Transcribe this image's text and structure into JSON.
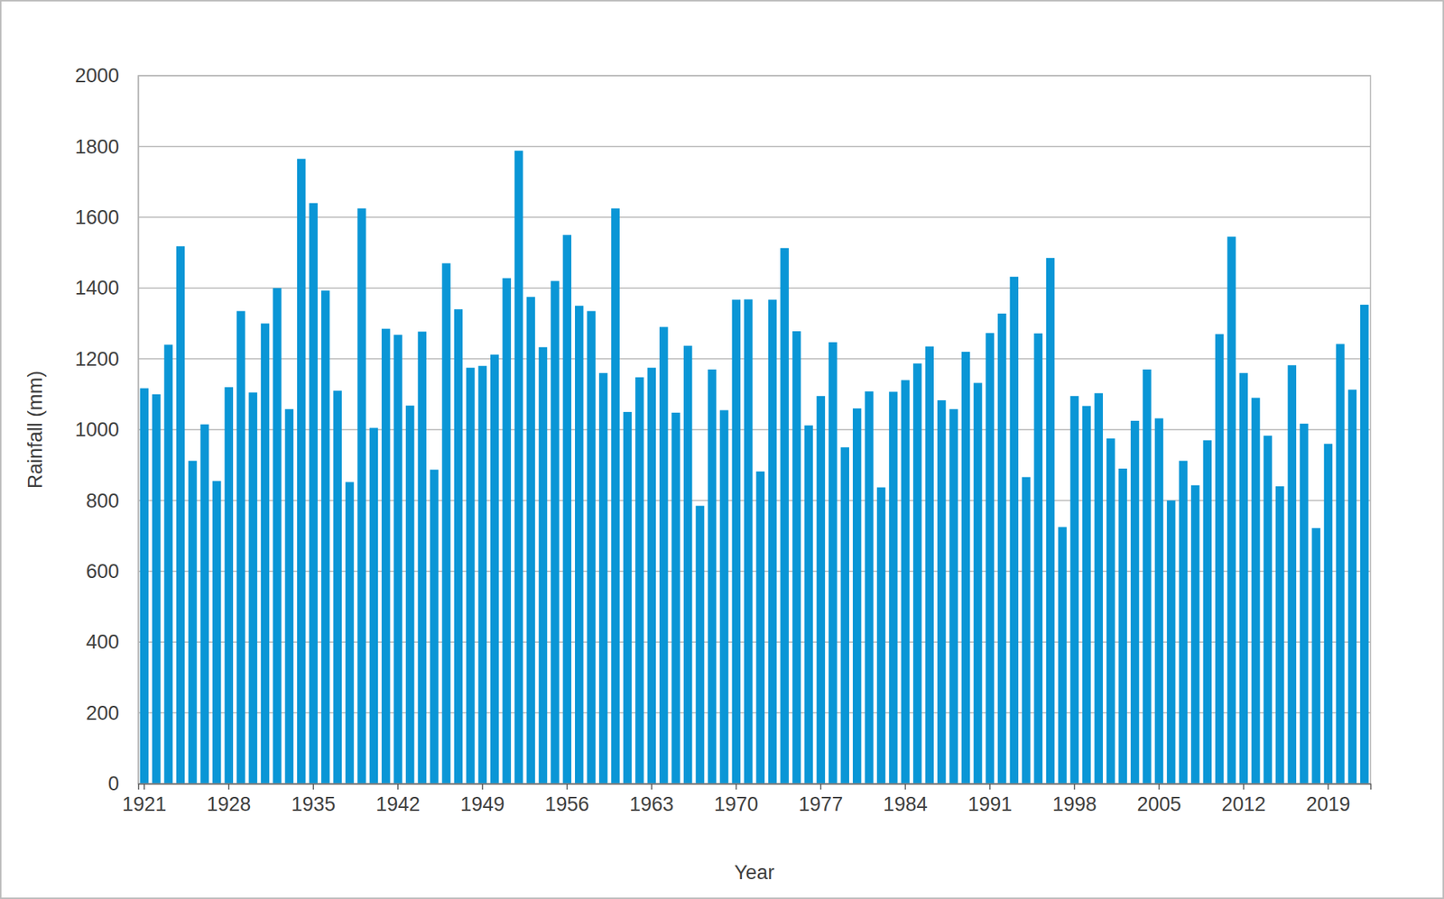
{
  "chart_data": {
    "type": "bar",
    "x_label": "Year",
    "y_label": "Rainfall (mm)",
    "categories": [
      "1921",
      null,
      null,
      null,
      null,
      null,
      null,
      "1928",
      null,
      null,
      null,
      null,
      null,
      null,
      "1935",
      null,
      null,
      null,
      null,
      null,
      null,
      "1942",
      null,
      null,
      null,
      null,
      null,
      null,
      "1949",
      null,
      null,
      null,
      null,
      null,
      null,
      "1956",
      null,
      null,
      null,
      null,
      null,
      null,
      "1963",
      null,
      null,
      null,
      null,
      null,
      null,
      "1970",
      null,
      null,
      null,
      null,
      null,
      null,
      "1977",
      null,
      null,
      null,
      null,
      null,
      null,
      "1984",
      null,
      null,
      null,
      null,
      null,
      null,
      "1991",
      null,
      null,
      null,
      null,
      null,
      null,
      "1998",
      null,
      null,
      null,
      null,
      null,
      null,
      "2005",
      null,
      null,
      null,
      null,
      null,
      null,
      "2012",
      null,
      null,
      null,
      null,
      null,
      null,
      "2019",
      null,
      null,
      null
    ],
    "values": [
      1117,
      1100,
      1240,
      1518,
      912,
      1015,
      855,
      1120,
      1335,
      1105,
      1300,
      1400,
      1058,
      1765,
      1640,
      1393,
      1110,
      852,
      1625,
      1005,
      1285,
      1268,
      1068,
      1277,
      887,
      1470,
      1340,
      1175,
      1180,
      1212,
      1428,
      1788,
      1375,
      1233,
      1420,
      1550,
      1350,
      1335,
      1160,
      1625,
      1050,
      1148,
      1175,
      1290,
      1048,
      1237,
      785,
      1170,
      1055,
      1367,
      1368,
      882,
      1367,
      1513,
      1278,
      1012,
      1095,
      1247,
      950,
      1060,
      1108,
      837,
      1107,
      1140,
      1187,
      1235,
      1083,
      1058,
      1220,
      1132,
      1273,
      1328,
      1432,
      866,
      1272,
      1485,
      725,
      1095,
      1067,
      1103,
      975,
      890,
      1025,
      1170,
      1032,
      800,
      912,
      843,
      970,
      1270,
      1545,
      1160,
      1090,
      983,
      840,
      1182,
      1017,
      722,
      960,
      1242,
      1113,
      1353
    ],
    "color": "#0a96d6",
    "ylim": [
      0,
      2000
    ],
    "yticks": [
      0,
      200,
      400,
      600,
      800,
      1000,
      1200,
      1400,
      1600,
      1800,
      2000
    ],
    "grid": true
  }
}
